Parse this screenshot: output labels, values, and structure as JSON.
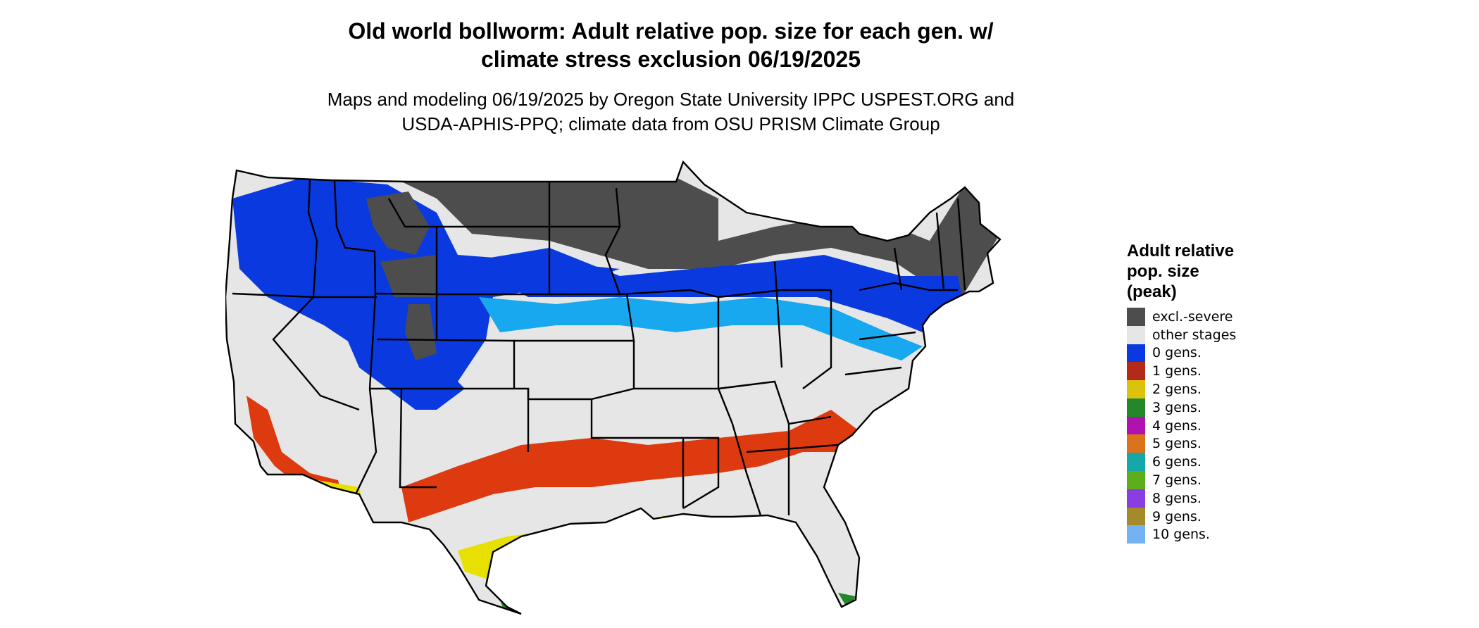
{
  "title_line1": "Old world bollworm: Adult relative pop. size for each gen. w/",
  "title_line2": "climate stress exclusion 06/19/2025",
  "subtitle_line1": "Maps and modeling 06/19/2025 by Oregon State University IPPC USPEST.ORG and",
  "subtitle_line2": "USDA-APHIS-PPQ; climate data from OSU PRISM Climate Group",
  "legend": {
    "title_line1": "Adult relative",
    "title_line2": "pop. size",
    "title_line3": "(peak)",
    "items": [
      {
        "label": "excl.-severe",
        "color": "#4d4d4d"
      },
      {
        "label": "other stages",
        "color": "#e6e6e6"
      },
      {
        "label": "0 gens.",
        "color": "#0a3adf"
      },
      {
        "label": "1 gens.",
        "color": "#b42a18"
      },
      {
        "label": "2 gens.",
        "color": "#dcc20a"
      },
      {
        "label": "3 gens.",
        "color": "#24882a"
      },
      {
        "label": "4 gens.",
        "color": "#b012b0"
      },
      {
        "label": "5 gens.",
        "color": "#db731b"
      },
      {
        "label": "6 gens.",
        "color": "#14a9a8"
      },
      {
        "label": "7 gens.",
        "color": "#5eae1b"
      },
      {
        "label": "8 gens.",
        "color": "#8a3de0"
      },
      {
        "label": "9 gens.",
        "color": "#a58a2a"
      },
      {
        "label": "10 gens.",
        "color": "#74b2f2"
      }
    ]
  },
  "map_colors": {
    "excluded": "#4d4d4d",
    "other": "#e6e6e6",
    "gen0": "#0a3adf",
    "gen0_light": "#18a8f0",
    "gen1": "#dd3a10",
    "gen2": "#e8e000",
    "gen3": "#24882a",
    "borders": "#000000"
  }
}
